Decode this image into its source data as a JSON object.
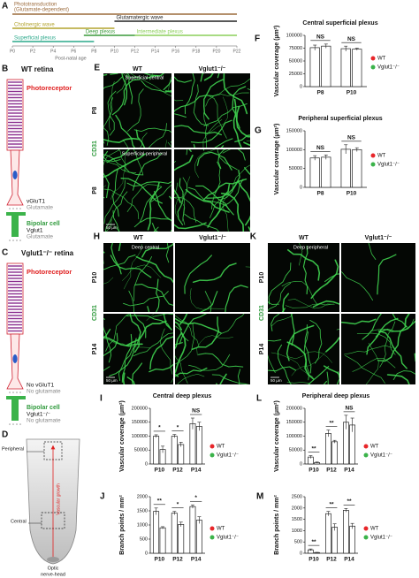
{
  "timeline": {
    "panel": "A",
    "ticks": [
      "P0",
      "P2",
      "P4",
      "P6",
      "P8",
      "P10",
      "P12",
      "P14",
      "P16",
      "P18",
      "P20",
      "P22"
    ],
    "xlim": [
      0,
      22
    ],
    "axis_label": "Post-natal age",
    "bars": [
      {
        "label": "Phototransduction",
        "sublabel": "(Glutamate-dependent)",
        "color": "#9c6b3c",
        "start": 0,
        "end": 22
      },
      {
        "label": "Glutamatergic wave",
        "color": "#222222",
        "start": 10,
        "end": 22
      },
      {
        "label": "Cholinergic wave",
        "color": "#b3a32e",
        "start": 0,
        "end": 10
      },
      {
        "label": "Deep plexus",
        "color": "#3a9a3a",
        "start": 7,
        "end": 12
      },
      {
        "label": "Intermediate plexus",
        "color": "#8ccf5a",
        "start": 12,
        "end": 22
      },
      {
        "label": "Superficial plexus",
        "color": "#2aa88a",
        "start": 0,
        "end": 8
      }
    ]
  },
  "retina_wt": {
    "panel": "B",
    "title": "WT retina",
    "photoreceptor": "Photoreceptor",
    "transporter": "vGluT1",
    "release": "Glutamate",
    "bipolar": "Bipolar cell",
    "bipolar_transporter": "Vglut1",
    "bipolar_release": "Glutamate"
  },
  "retina_ko": {
    "panel": "C",
    "title": "Vglut1⁻/⁻ retina",
    "photoreceptor": "Photoreceptor",
    "transporter": "No vGluT1",
    "release": "No glutamate",
    "bipolar": "Bipolar cell",
    "bipolar_transporter": "Vglut1⁻/⁻",
    "bipolar_release": "No glutamate"
  },
  "schematic": {
    "panel": "D",
    "peripheral": "Peripheral",
    "central": "Central",
    "arrow": "Vascular growth",
    "nerve_1": "Optic",
    "nerve_2": "nerve-head"
  },
  "images": [
    {
      "panel": "E",
      "columns": [
        "WT",
        "Vglut1⁻/⁻"
      ],
      "rows": [
        "P8",
        "P8"
      ],
      "stain": "CD31",
      "notes": [
        "Superficial central",
        "Superficial peripheral"
      ],
      "scale": "50 µm"
    },
    {
      "panel": "H",
      "columns": [
        "WT",
        "Vglut1⁻/⁻"
      ],
      "rows": [
        "P10",
        "P14"
      ],
      "stain": "CD31",
      "notes": [
        "Deep central"
      ],
      "scale": "50 µm"
    },
    {
      "panel": "K",
      "columns": [
        "WT",
        "Vglut1⁻/⁻"
      ],
      "rows": [
        "P10",
        "P14"
      ],
      "stain": "CD31",
      "notes": [
        "Deep peripheral"
      ],
      "scale": "50 µm"
    }
  ],
  "chart_data": [
    {
      "panel": "F",
      "type": "bar",
      "title": "Central superficial plexus",
      "y_label": "Vascular coverage (µm²)",
      "categories": [
        "P8",
        "P10"
      ],
      "series": [
        {
          "name": "WT",
          "color": "#e8262a",
          "values": [
            76000,
            74000
          ],
          "errors": [
            5000,
            5000
          ]
        },
        {
          "name": "Vglut1⁻/⁻",
          "color": "#3bb34a",
          "values": [
            79000,
            73000
          ],
          "errors": [
            4000,
            2000
          ]
        }
      ],
      "annotations": [
        "NS",
        "NS"
      ],
      "ylim": [
        0,
        100000
      ],
      "yticks": [
        0,
        25000,
        50000,
        75000,
        100000
      ]
    },
    {
      "panel": "G",
      "type": "bar",
      "title": "Peripheral superficial plexus",
      "y_label": "Vascular coverage (µm²)",
      "categories": [
        "P8",
        "P10"
      ],
      "series": [
        {
          "name": "WT",
          "color": "#e8262a",
          "values": [
            78000,
            101000
          ],
          "errors": [
            6000,
            12000
          ]
        },
        {
          "name": "Vglut1⁻/⁻",
          "color": "#3bb34a",
          "values": [
            80000,
            100000
          ],
          "errors": [
            6000,
            5000
          ]
        }
      ],
      "annotations": [
        "NS",
        "NS"
      ],
      "ylim": [
        0,
        150000
      ],
      "yticks": [
        0,
        50000,
        100000,
        150000
      ]
    },
    {
      "panel": "I",
      "type": "bar",
      "title": "Central deep plexus",
      "y_label": "Vascular coverage (µm²)",
      "categories": [
        "P10",
        "P12",
        "P14"
      ],
      "series": [
        {
          "name": "WT",
          "color": "#e8262a",
          "values": [
            100000,
            100000,
            145000
          ],
          "errors": [
            5000,
            6000,
            20000
          ]
        },
        {
          "name": "Vglut1⁻/⁻",
          "color": "#3bb34a",
          "values": [
            52000,
            70000,
            135000
          ],
          "errors": [
            12000,
            8000,
            15000
          ]
        }
      ],
      "annotations": [
        "*",
        "*",
        "NS"
      ],
      "ylim": [
        0,
        200000
      ],
      "yticks": [
        0,
        50000,
        100000,
        150000,
        200000
      ]
    },
    {
      "panel": "J",
      "type": "bar",
      "y_label": "Branch points / mm²",
      "categories": [
        "P10",
        "P12",
        "P14"
      ],
      "series": [
        {
          "name": "WT",
          "color": "#e8262a",
          "values": [
            1480,
            1420,
            1650
          ],
          "errors": [
            120,
            60,
            60
          ]
        },
        {
          "name": "Vglut1⁻/⁻",
          "color": "#3bb34a",
          "values": [
            900,
            1020,
            1170
          ],
          "errors": [
            40,
            80,
            120
          ]
        }
      ],
      "annotations": [
        "**",
        "*",
        "*"
      ],
      "ylim": [
        0,
        2000
      ],
      "yticks": [
        0,
        500,
        1000,
        1500,
        2000
      ]
    },
    {
      "panel": "L",
      "type": "bar",
      "title": "Peripheral deep plexus",
      "y_label": "Vascular coverage (µm²)",
      "categories": [
        "P10",
        "P12",
        "P14"
      ],
      "series": [
        {
          "name": "WT",
          "color": "#e8262a",
          "values": [
            25000,
            110000,
            150000
          ],
          "errors": [
            5000,
            12000,
            25000
          ]
        },
        {
          "name": "Vglut1⁻/⁻",
          "color": "#3bb34a",
          "values": [
            5000,
            80000,
            140000
          ],
          "errors": [
            2000,
            5000,
            25000
          ]
        }
      ],
      "annotations": [
        "**",
        "**",
        "NS"
      ],
      "ylim": [
        0,
        200000
      ],
      "yticks": [
        0,
        50000,
        100000,
        150000,
        200000
      ]
    },
    {
      "panel": "M",
      "type": "bar",
      "y_label": "Branch points / mm²",
      "categories": [
        "P10",
        "P12",
        "P14"
      ],
      "series": [
        {
          "name": "WT",
          "color": "#e8262a",
          "values": [
            150,
            1750,
            1900
          ],
          "errors": [
            40,
            100,
            80
          ]
        },
        {
          "name": "Vglut1⁻/⁻",
          "color": "#3bb34a",
          "values": [
            30,
            1150,
            1200
          ],
          "errors": [
            10,
            150,
            120
          ]
        }
      ],
      "annotations": [
        "**",
        "**",
        "**"
      ],
      "ylim": [
        0,
        2500
      ],
      "yticks": [
        0,
        500,
        1000,
        1500,
        2000,
        2500
      ]
    }
  ]
}
